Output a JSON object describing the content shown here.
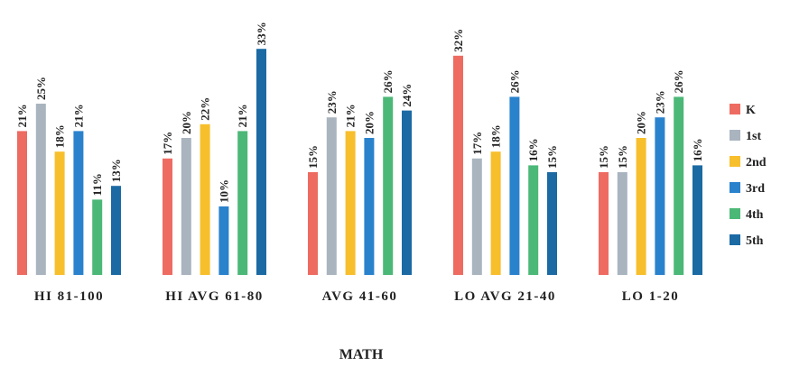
{
  "chart_data": {
    "type": "bar",
    "title": "MATH",
    "categories": [
      "HI 81-100",
      "HI AVG 61-80",
      "AVG 41-60",
      "LO AVG 21-40",
      "LO 1-20"
    ],
    "series": [
      {
        "name": "K",
        "color": "#ee6b62",
        "values": [
          21,
          17,
          15,
          32,
          15
        ]
      },
      {
        "name": "1st",
        "color": "#a9b4bf",
        "values": [
          25,
          20,
          23,
          17,
          15
        ]
      },
      {
        "name": "2nd",
        "color": "#f7bf2c",
        "values": [
          18,
          22,
          21,
          18,
          20
        ]
      },
      {
        "name": "3rd",
        "color": "#2a82cd",
        "values": [
          21,
          10,
          20,
          26,
          23
        ]
      },
      {
        "name": "4th",
        "color": "#4cb877",
        "values": [
          11,
          21,
          26,
          16,
          26
        ]
      },
      {
        "name": "5th",
        "color": "#1b6aa4",
        "values": [
          13,
          33,
          24,
          15,
          16
        ]
      }
    ],
    "value_suffix": "%",
    "ylim": [
      0,
      33
    ],
    "grid": false,
    "legend": "right"
  }
}
